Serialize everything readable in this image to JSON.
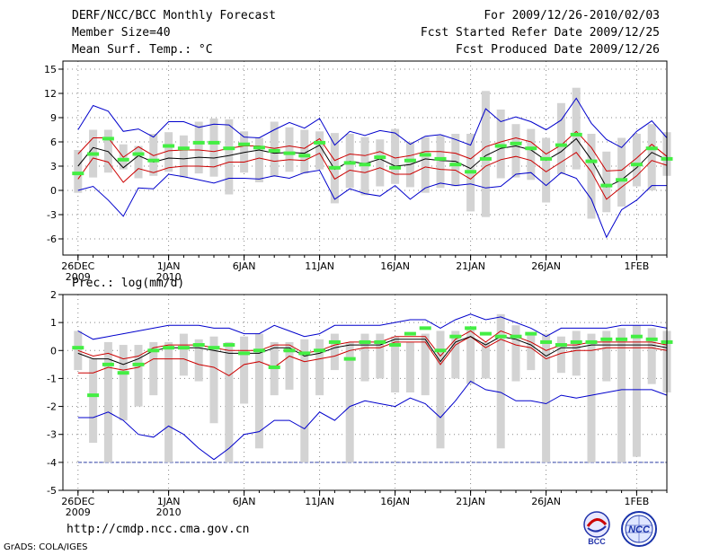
{
  "header": {
    "title": "DERF/NCC/BCC Monthly Forecast",
    "member_size": "Member Size=40",
    "variable": "Mean Surf. Temp.: °C",
    "for_range": "For 2009/12/26-2010/02/03",
    "started": "Fcst Started Refer Date 2009/12/25",
    "produced": "Fcst Produced Date 2009/12/26"
  },
  "precip_label": "Prec.: log(mm/d)",
  "footer": {
    "url": "http://cmdp.ncc.cma.gov.cn",
    "credit": "GrADS: COLA/IGES"
  },
  "logos": {
    "bcc": "BCC",
    "ncc": "NCC"
  },
  "colors": {
    "box": "#d3d3d3",
    "obs": "#44ee44",
    "spread": "#0000cc",
    "percentile": "#cc0000",
    "mean": "#000000",
    "grid": "#888888"
  },
  "chart_data": [
    {
      "type": "box",
      "title": "Mean Surf. Temp.: °C",
      "ylim": [
        -8,
        16
      ],
      "yticks": [
        -6,
        -3,
        0,
        3,
        6,
        9,
        12,
        15
      ],
      "xlim": [
        -1,
        39
      ],
      "xticks": [
        {
          "day": 0,
          "label": "26DEC",
          "sub": "2009"
        },
        {
          "day": 6,
          "label": "1JAN",
          "sub": "2010"
        },
        {
          "day": 11,
          "label": "6JAN"
        },
        {
          "day": 16,
          "label": "11JAN"
        },
        {
          "day": 21,
          "label": "16JAN"
        },
        {
          "day": 26,
          "label": "21JAN"
        },
        {
          "day": 31,
          "label": "26JAN"
        },
        {
          "day": 37,
          "label": "1FEB"
        }
      ],
      "box_low": [
        -0.3,
        1.6,
        2.2,
        2.6,
        1.5,
        1.8,
        2.3,
        1.6,
        2.1,
        1.7,
        -0.5,
        2.2,
        1.0,
        1.7,
        2.3,
        2.1,
        2.6,
        -1.6,
        0.3,
        -0.6,
        0.5,
        0.8,
        0.4,
        -0.3,
        0.3,
        0.5,
        -2.6,
        -3.3,
        1.5,
        1.6,
        1.3,
        -1.5,
        2.0,
        2.6,
        -3.5,
        -2.7,
        -2.0,
        0.5,
        0.0,
        1.8
      ],
      "box_high": [
        5.0,
        7.5,
        7.5,
        5.7,
        5.5,
        7.0,
        7.2,
        6.8,
        8.5,
        8.9,
        8.8,
        7.3,
        6.5,
        8.5,
        7.8,
        7.5,
        7.3,
        7.1,
        7.0,
        6.6,
        6.3,
        7.6,
        6.0,
        6.6,
        6.8,
        7.0,
        7.0,
        12.3,
        10.0,
        8.2,
        7.6,
        6.5,
        10.8,
        12.7,
        7.0,
        4.8,
        6.5,
        7.0,
        8.2,
        7.2
      ],
      "spread_max": [
        7.5,
        10.5,
        9.8,
        7.3,
        7.6,
        6.6,
        8.5,
        8.5,
        7.8,
        8.2,
        8.1,
        6.6,
        6.5,
        7.5,
        8.4,
        7.7,
        8.9,
        5.6,
        7.3,
        6.8,
        7.4,
        7.1,
        5.7,
        6.7,
        6.9,
        6.3,
        5.6,
        10.1,
        8.5,
        9.1,
        8.5,
        7.5,
        8.7,
        11.4,
        8.3,
        6.3,
        5.3,
        7.3,
        8.6,
        6.5
      ],
      "pct_high": [
        4.5,
        6.5,
        6.5,
        4.1,
        5.4,
        4.3,
        4.9,
        5.0,
        5.0,
        4.8,
        5.2,
        5.5,
        5.5,
        5.2,
        5.5,
        5.2,
        6.4,
        3.7,
        4.5,
        4.3,
        4.8,
        4.0,
        4.3,
        4.8,
        4.8,
        4.6,
        3.9,
        5.4,
        6.0,
        6.5,
        6.0,
        4.5,
        5.6,
        7.3,
        5.3,
        2.4,
        2.5,
        4.0,
        5.7,
        4.2
      ],
      "mean": [
        3.0,
        5.3,
        4.8,
        2.8,
        4.3,
        3.5,
        4.0,
        3.9,
        4.1,
        4.0,
        4.3,
        4.7,
        5.0,
        4.6,
        4.7,
        4.6,
        5.6,
        2.6,
        3.6,
        3.3,
        3.9,
        3.0,
        3.2,
        3.9,
        3.7,
        3.6,
        2.7,
        4.3,
        5.2,
        5.5,
        5.0,
        3.7,
        4.8,
        6.4,
        3.8,
        0.4,
        1.3,
        2.8,
        4.7,
        3.8
      ],
      "pct_low": [
        1.4,
        4.0,
        3.5,
        1.0,
        2.7,
        2.2,
        2.8,
        3.0,
        3.0,
        2.9,
        3.5,
        3.5,
        4.0,
        3.6,
        3.8,
        3.7,
        4.6,
        1.4,
        2.5,
        2.2,
        2.8,
        2.0,
        2.0,
        2.9,
        2.6,
        2.5,
        1.4,
        3.0,
        3.8,
        4.2,
        3.7,
        2.3,
        3.5,
        4.7,
        2.3,
        -1.1,
        0.4,
        1.8,
        3.7,
        3.1
      ],
      "spread_min": [
        0.0,
        0.5,
        -1.2,
        -3.2,
        0.3,
        0.2,
        2.0,
        1.7,
        1.3,
        0.9,
        1.5,
        1.5,
        1.4,
        1.8,
        1.5,
        2.2,
        2.5,
        -1.1,
        0.2,
        -0.4,
        -0.7,
        0.6,
        -1.1,
        0.3,
        0.9,
        0.6,
        0.8,
        0.3,
        0.5,
        2.0,
        2.2,
        0.6,
        2.2,
        1.5,
        -1.1,
        -5.8,
        -2.4,
        -1.2,
        0.6,
        0.6
      ],
      "obs": [
        2.1,
        4.5,
        6.4,
        3.8,
        4.5,
        3.7,
        5.5,
        5.2,
        5.9,
        5.9,
        5.2,
        5.7,
        5.3,
        4.9,
        4.6,
        4.3,
        5.9,
        2.8,
        3.4,
        3.2,
        4.1,
        2.8,
        3.7,
        4.4,
        3.9,
        3.2,
        2.3,
        3.9,
        5.5,
        5.8,
        5.2,
        3.9,
        5.6,
        6.9,
        3.6,
        0.6,
        1.3,
        3.2,
        5.2,
        3.9
      ]
    },
    {
      "type": "box",
      "title": "Prec.: log(mm/d)",
      "ylim": [
        -5,
        2
      ],
      "yticks": [
        -5,
        -4,
        -3,
        -2,
        -1,
        0,
        1,
        2
      ],
      "xlim": [
        -1,
        39
      ],
      "xticks": [
        {
          "day": 0,
          "label": "26DEC",
          "sub": "2009"
        },
        {
          "day": 6,
          "label": "1JAN",
          "sub": "2010"
        },
        {
          "day": 11,
          "label": "6JAN"
        },
        {
          "day": 16,
          "label": "11JAN"
        },
        {
          "day": 21,
          "label": "16JAN"
        },
        {
          "day": 26,
          "label": "21JAN"
        },
        {
          "day": 31,
          "label": "26JAN"
        },
        {
          "day": 37,
          "label": "1FEB"
        }
      ],
      "box_low": [
        -0.7,
        -3.3,
        -4.0,
        -2.5,
        -2.0,
        -1.6,
        -4.0,
        -0.9,
        -1.1,
        -2.6,
        -4.0,
        -1.9,
        -3.5,
        -1.6,
        -1.4,
        -4.0,
        -1.6,
        -0.7,
        -4.0,
        -1.1,
        -1.0,
        -1.5,
        -1.5,
        -1.6,
        -3.5,
        -1.0,
        -1.2,
        -1.0,
        -3.5,
        -1.1,
        -0.7,
        -4.0,
        -0.8,
        -0.9,
        -4.0,
        -1.1,
        -4.0,
        -3.8,
        -1.2,
        -1.5
      ],
      "box_high": [
        0.7,
        -0.3,
        0.3,
        0.2,
        0.2,
        0.3,
        0.3,
        0.6,
        0.4,
        0.5,
        0.3,
        0.5,
        0.6,
        0.3,
        0.3,
        0.4,
        0.4,
        0.6,
        0.3,
        0.6,
        0.6,
        0.5,
        0.3,
        0.6,
        0.7,
        0.7,
        0.8,
        0.3,
        1.3,
        0.9,
        0.6,
        0.6,
        0.5,
        0.7,
        0.6,
        0.7,
        0.8,
        0.9,
        0.8,
        0.7
      ],
      "spread_max": [
        0.7,
        0.4,
        0.5,
        0.6,
        0.7,
        0.8,
        0.9,
        0.9,
        0.9,
        0.8,
        0.8,
        0.6,
        0.6,
        0.9,
        0.7,
        0.5,
        0.6,
        0.9,
        0.9,
        0.9,
        0.9,
        1.0,
        1.1,
        1.1,
        0.8,
        1.1,
        1.3,
        1.1,
        1.2,
        1.0,
        0.8,
        0.5,
        0.8,
        0.8,
        0.8,
        0.8,
        0.9,
        0.9,
        0.9,
        0.8
      ],
      "pct_high": [
        0.0,
        -0.2,
        -0.1,
        -0.3,
        -0.2,
        0.1,
        0.2,
        0.2,
        0.2,
        0.1,
        0.0,
        0.0,
        0.0,
        0.2,
        0.2,
        -0.1,
        0.0,
        0.2,
        0.3,
        0.3,
        0.3,
        0.5,
        0.5,
        0.5,
        -0.2,
        0.4,
        0.7,
        0.3,
        0.7,
        0.5,
        0.3,
        0.0,
        0.2,
        0.2,
        0.3,
        0.3,
        0.3,
        0.3,
        0.3,
        0.2
      ],
      "mean": [
        -0.1,
        -0.3,
        -0.3,
        -0.5,
        -0.3,
        0.0,
        0.1,
        0.1,
        0.1,
        0.0,
        -0.1,
        -0.1,
        -0.1,
        0.1,
        0.1,
        -0.2,
        -0.1,
        0.1,
        0.2,
        0.2,
        0.2,
        0.4,
        0.4,
        0.4,
        -0.4,
        0.3,
        0.5,
        0.2,
        0.5,
        0.4,
        0.2,
        -0.2,
        0.1,
        0.1,
        0.2,
        0.2,
        0.2,
        0.2,
        0.2,
        0.1
      ],
      "pct_low": [
        -0.8,
        -0.8,
        -0.6,
        -0.7,
        -0.6,
        -0.3,
        -0.3,
        -0.3,
        -0.5,
        -0.6,
        -0.9,
        -0.5,
        -0.4,
        -0.6,
        -0.2,
        -0.4,
        -0.3,
        -0.2,
        0.0,
        0.1,
        0.1,
        0.3,
        0.3,
        0.3,
        -0.5,
        0.2,
        0.5,
        0.1,
        0.4,
        0.2,
        0.1,
        -0.3,
        -0.1,
        0.0,
        0.0,
        0.1,
        0.1,
        0.1,
        0.1,
        0.0
      ],
      "spread_min": [
        -2.4,
        -2.4,
        -2.2,
        -2.5,
        -3.0,
        -3.1,
        -2.7,
        -3.0,
        -3.5,
        -3.9,
        -3.5,
        -3.0,
        -2.9,
        -2.5,
        -2.5,
        -2.8,
        -2.2,
        -2.5,
        -2.0,
        -1.8,
        -1.9,
        -2.0,
        -1.7,
        -1.9,
        -2.4,
        -1.8,
        -1.1,
        -1.4,
        -1.5,
        -1.8,
        -1.8,
        -1.9,
        -1.6,
        -1.7,
        -1.6,
        -1.5,
        -1.4,
        -1.4,
        -1.4,
        -1.6
      ],
      "obs": [
        0.1,
        -1.6,
        -0.5,
        -0.8,
        -0.5,
        0.0,
        0.1,
        0.1,
        0.2,
        0.1,
        0.2,
        -0.1,
        0.0,
        -0.6,
        0.0,
        -0.1,
        0.0,
        0.3,
        -0.3,
        0.3,
        0.3,
        0.2,
        0.6,
        0.8,
        0.0,
        0.5,
        0.8,
        0.6,
        0.5,
        0.5,
        0.6,
        0.3,
        0.2,
        0.3,
        0.3,
        0.4,
        0.4,
        0.5,
        0.4,
        0.3
      ],
      "floor": -4.0
    }
  ]
}
